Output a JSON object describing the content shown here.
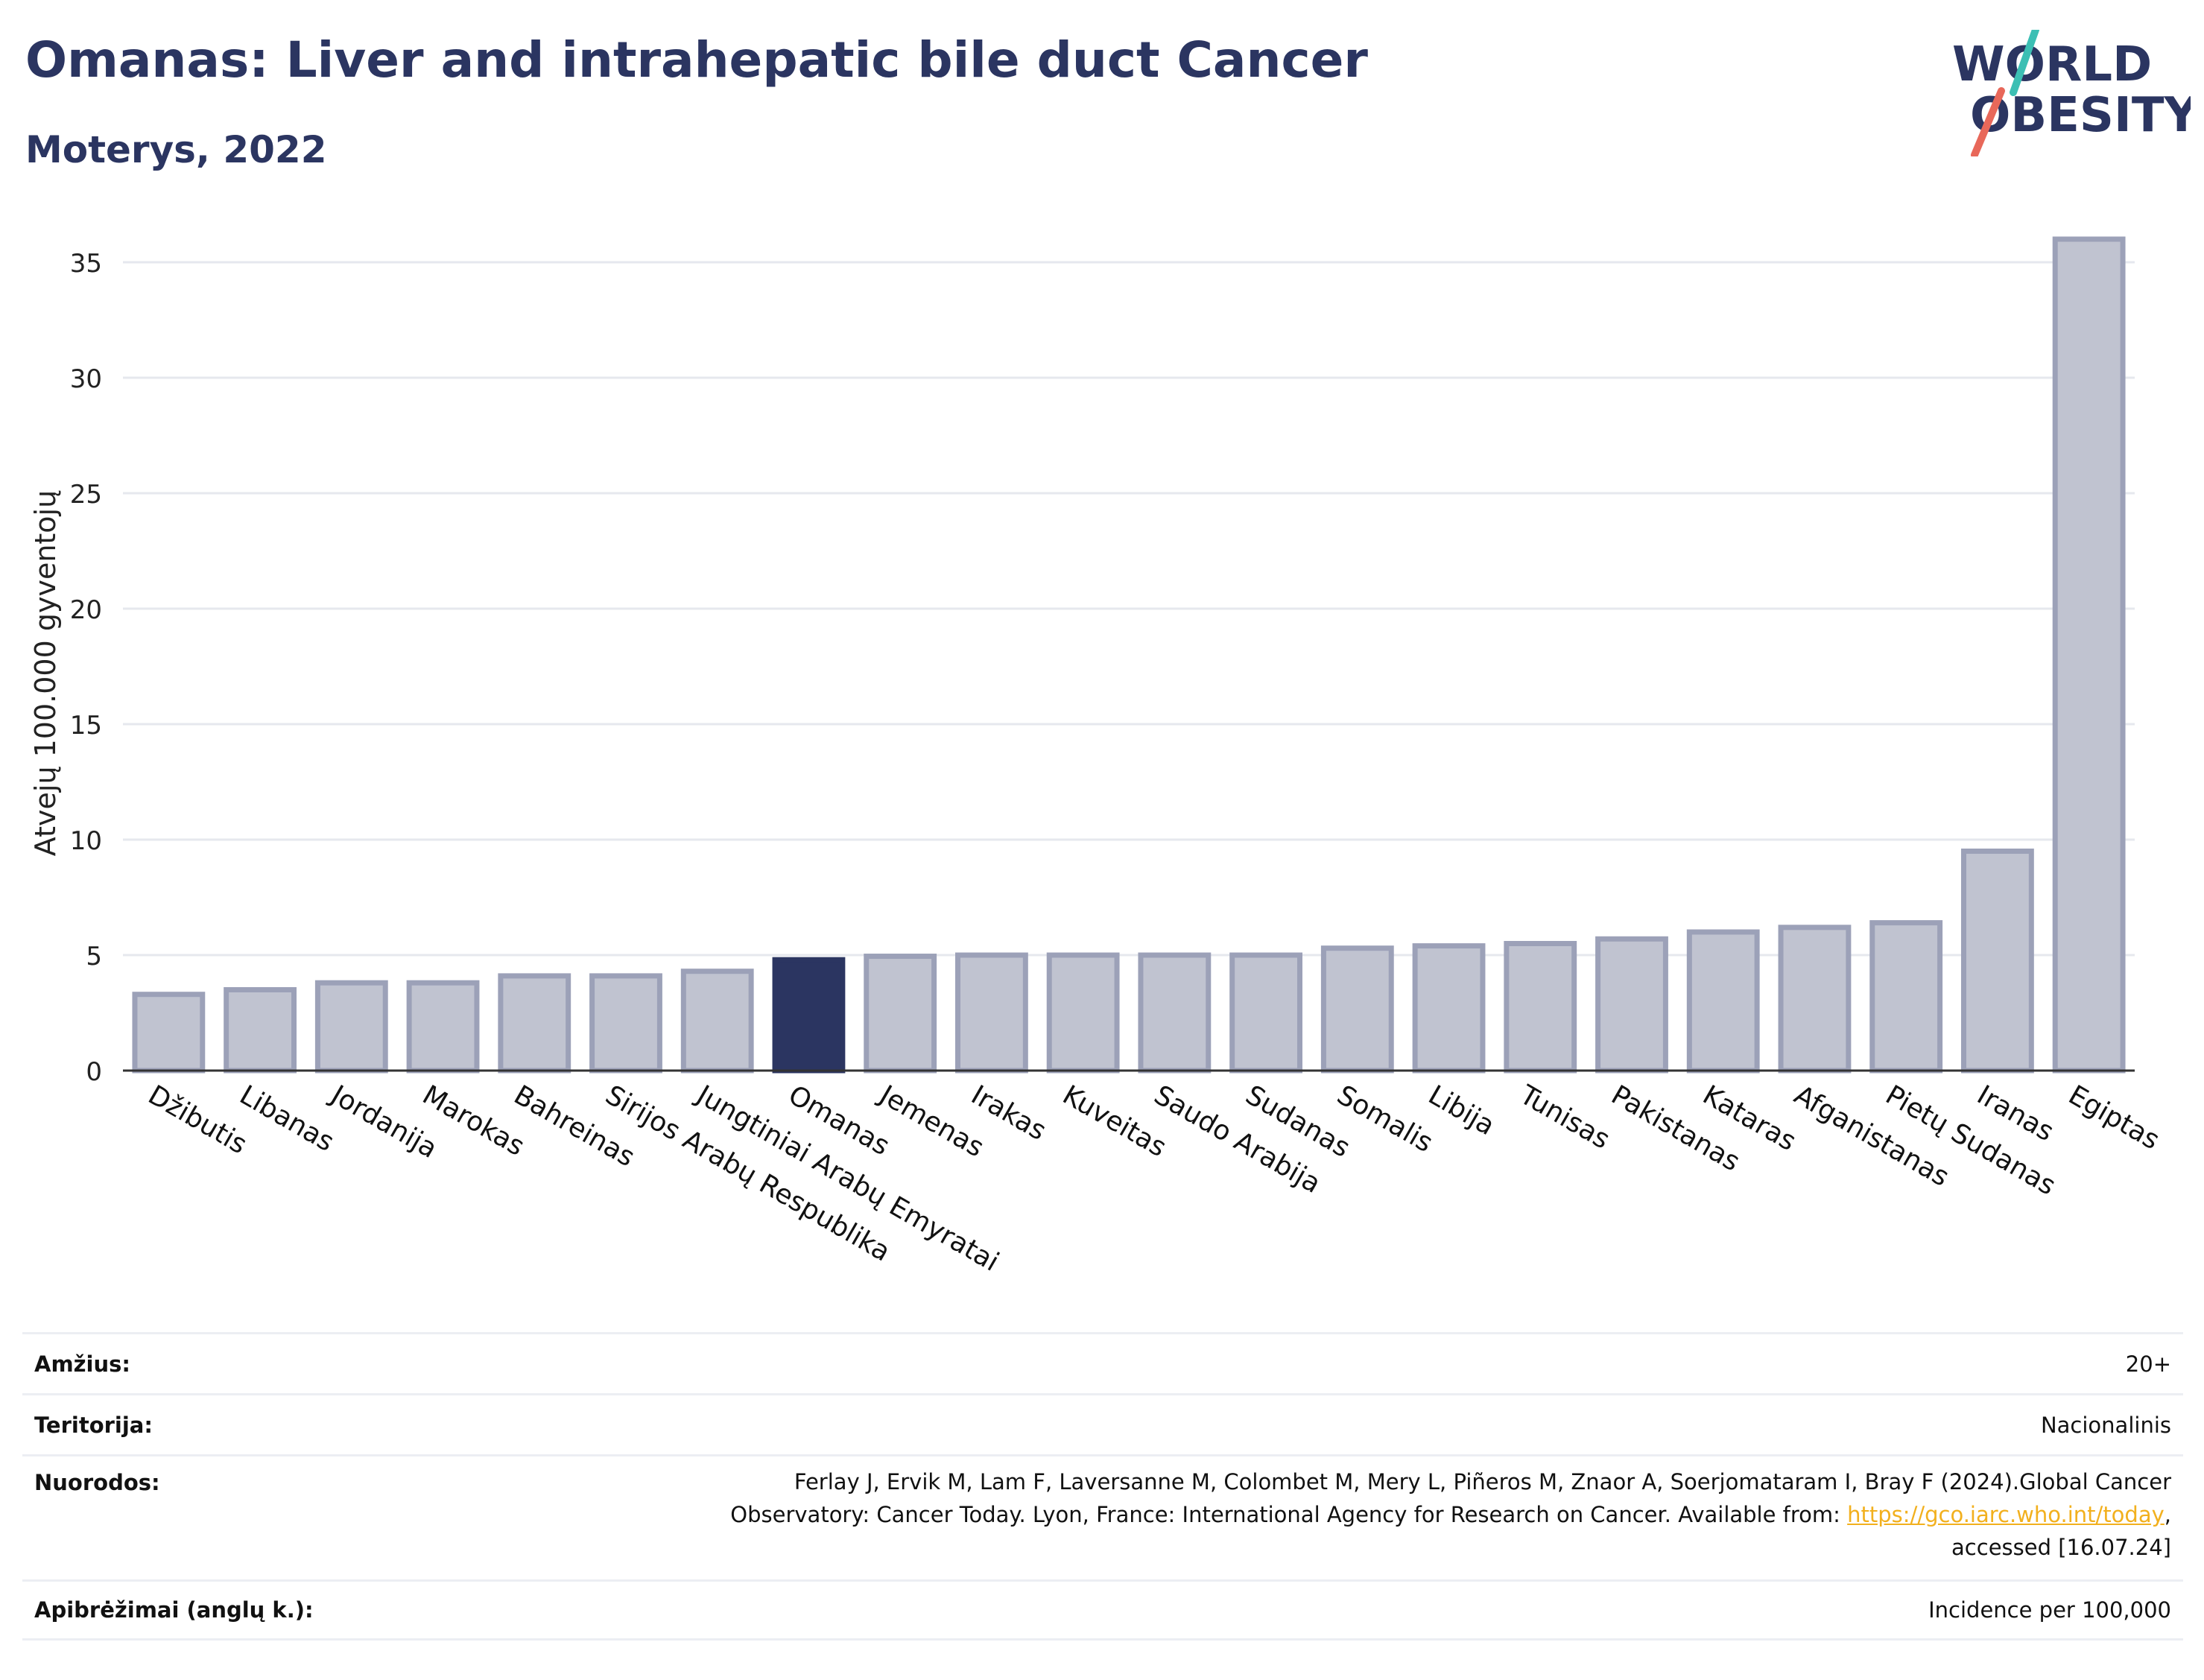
{
  "header": {
    "title": "Omanas: Liver and intrahepatic bile duct Cancer",
    "subtitle": "Moterys, 2022"
  },
  "logo": {
    "line1": "WORLD",
    "line2": "OBESITY",
    "colors": {
      "text": "#2b3561",
      "slash_teal": "#3cbfb4",
      "slash_coral": "#e8685a"
    }
  },
  "chart_data": {
    "type": "bar",
    "title": "Omanas: Liver and intrahepatic bile duct Cancer",
    "subtitle": "Moterys, 2022",
    "xlabel": "",
    "ylabel": "Atvejų 100.000 gyventojų",
    "ylim": [
      0,
      37
    ],
    "yticks": [
      0,
      5,
      10,
      15,
      20,
      25,
      30,
      35
    ],
    "grid": true,
    "highlight": "Omanas",
    "colors": {
      "bar": "#c0c3d0",
      "bar_border": "#9ca1b8",
      "highlight": "#2b3561",
      "grid": "#e6e8ee"
    },
    "categories": [
      "Džibutis",
      "Libanas",
      "Jordanija",
      "Marokas",
      "Bahreinas",
      "Sirijos Arabų Respublika",
      "Jungtiniai Arabų Emyratai",
      "Omanas",
      "Jemenas",
      "Irakas",
      "Kuveitas",
      "Saudo Arabija",
      "Sudanas",
      "Somalis",
      "Libija",
      "Tunisas",
      "Pakistanas",
      "Kataras",
      "Afganistanas",
      "Pietų Sudanas",
      "Iranas",
      "Egiptas"
    ],
    "values": [
      3.3,
      3.5,
      3.8,
      3.8,
      4.1,
      4.1,
      4.3,
      4.8,
      4.95,
      5.0,
      5.0,
      5.0,
      5.0,
      5.3,
      5.4,
      5.5,
      5.7,
      6.0,
      6.2,
      6.4,
      9.5,
      36.0
    ]
  },
  "meta": {
    "rows": [
      {
        "label": "Amžius:",
        "value": "20+"
      },
      {
        "label": "Teritorija:",
        "value": "Nacionalinis"
      },
      {
        "label": "Nuorodos:",
        "value_line1": "Ferlay J, Ervik M, Lam F, Laversanne M, Colombet M, Mery L, Piñeros M, Znaor A, Soerjomataram I, Bray F (2024).Global Cancer",
        "value_line2_pre": "Observatory: Cancer Today. Lyon, France: International Agency for Research on Cancer. Available from: ",
        "value_link": "https://gco.iarc.who.int/today",
        "value_line2_post": ",",
        "value_line3": "accessed [16.07.24]"
      },
      {
        "label": "Apibrėžimai (anglų k.):",
        "value": "Incidence per 100,000"
      }
    ]
  }
}
